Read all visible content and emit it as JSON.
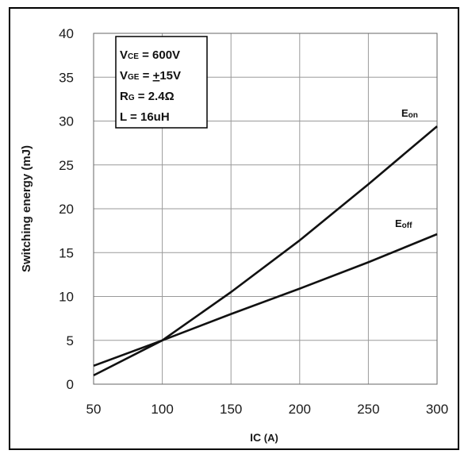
{
  "chart_data": {
    "type": "line",
    "xlabel": "IC (A)",
    "ylabel": "Switching energy (mJ)",
    "xlim": [
      50,
      300
    ],
    "ylim": [
      0,
      40
    ],
    "x_ticks": [
      50,
      100,
      150,
      200,
      250,
      300
    ],
    "y_ticks": [
      0,
      5,
      10,
      15,
      20,
      25,
      30,
      35,
      40
    ],
    "grid": true,
    "series": [
      {
        "name": "Eon",
        "x": [
          50,
          100,
          150,
          200,
          250,
          300
        ],
        "y": [
          1.0,
          5.0,
          10.5,
          16.4,
          22.8,
          29.4
        ]
      },
      {
        "name": "Eoff",
        "x": [
          50,
          100,
          150,
          200,
          250,
          300
        ],
        "y": [
          2.1,
          5.0,
          8.0,
          10.9,
          13.9,
          17.1
        ]
      }
    ],
    "conditions": [
      "VCE = 600V",
      "VGE = ±15V",
      "RG = 2.4Ω",
      "L = 16uH"
    ],
    "colors": {
      "line": "#111111",
      "grid": "#9a9a9a",
      "frame": "#000000"
    }
  }
}
